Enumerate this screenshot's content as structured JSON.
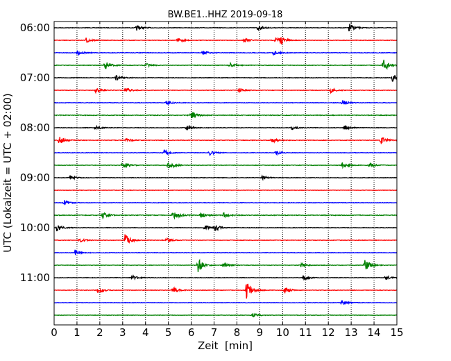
{
  "chart_data": {
    "type": "line",
    "title": "BW.BE1..HHZ 2019-09-18",
    "xlabel": "Zeit  [min]",
    "ylabel": "UTC (Lokalzeit = UTC + 02:00)",
    "xlim": [
      0,
      15
    ],
    "xticks": [
      0,
      1,
      2,
      3,
      4,
      5,
      6,
      7,
      8,
      9,
      10,
      11,
      12,
      13,
      14,
      15
    ],
    "grid": "vertical dotted",
    "trace_interval_min": 15,
    "ytick_labels": [
      "06:00",
      "07:00",
      "08:00",
      "09:00",
      "10:00",
      "11:00"
    ],
    "colors": [
      "#000000",
      "#ff0000",
      "#0000ff",
      "#008000"
    ],
    "traces": [
      {
        "start": "06:00",
        "color": "#000000",
        "noise": 0.35,
        "events": [
          [
            3.6,
            1.4
          ],
          [
            8.9,
            1.4
          ],
          [
            12.9,
            2.2
          ]
        ]
      },
      {
        "start": "06:15",
        "color": "#ff0000",
        "noise": 0.35,
        "events": [
          [
            1.4,
            1.3
          ],
          [
            5.4,
            1.2
          ],
          [
            8.3,
            1.2
          ],
          [
            9.7,
            1.6
          ],
          [
            9.9,
            1.3
          ]
        ]
      },
      {
        "start": "06:30",
        "color": "#0000ff",
        "noise": 0.4,
        "events": [
          [
            1.0,
            1.2
          ],
          [
            6.5,
            1.0
          ],
          [
            9.6,
            1.0
          ]
        ]
      },
      {
        "start": "06:45",
        "color": "#008000",
        "noise": 0.35,
        "events": [
          [
            2.2,
            2.2
          ],
          [
            4.0,
            1.0
          ],
          [
            7.7,
            1.2
          ],
          [
            14.4,
            3.2
          ]
        ]
      },
      {
        "start": "07:00",
        "color": "#000000",
        "noise": 0.35,
        "events": [
          [
            2.7,
            1.2
          ],
          [
            14.8,
            1.5
          ]
        ]
      },
      {
        "start": "07:15",
        "color": "#ff0000",
        "noise": 0.35,
        "events": [
          [
            1.8,
            1.0
          ],
          [
            3.1,
            1.4
          ],
          [
            8.1,
            1.0
          ],
          [
            12.1,
            1.1
          ]
        ]
      },
      {
        "start": "07:30",
        "color": "#0000ff",
        "noise": 0.35,
        "events": [
          [
            4.9,
            1.0
          ],
          [
            12.6,
            1.4
          ]
        ]
      },
      {
        "start": "07:45",
        "color": "#008000",
        "noise": 0.5,
        "events": [
          [
            6.0,
            2.0
          ]
        ]
      },
      {
        "start": "08:00",
        "color": "#000000",
        "noise": 0.35,
        "events": [
          [
            1.8,
            1.0
          ],
          [
            5.8,
            1.0
          ],
          [
            10.4,
            1.0
          ],
          [
            12.7,
            1.2
          ]
        ]
      },
      {
        "start": "08:15",
        "color": "#ff0000",
        "noise": 0.4,
        "events": [
          [
            0.2,
            2.0
          ],
          [
            3.1,
            1.1
          ],
          [
            9.5,
            1.3
          ],
          [
            14.3,
            2.0
          ]
        ]
      },
      {
        "start": "08:30",
        "color": "#0000ff",
        "noise": 0.35,
        "events": [
          [
            4.8,
            1.4
          ],
          [
            6.8,
            1.2
          ],
          [
            9.7,
            1.0
          ]
        ]
      },
      {
        "start": "08:45",
        "color": "#008000",
        "noise": 0.35,
        "events": [
          [
            3.0,
            2.0
          ],
          [
            5.0,
            2.5
          ],
          [
            12.6,
            1.4
          ],
          [
            13.8,
            1.4
          ]
        ]
      },
      {
        "start": "09:00",
        "color": "#000000",
        "noise": 0.35,
        "events": [
          [
            0.7,
            1.0
          ],
          [
            9.1,
            1.0
          ]
        ]
      },
      {
        "start": "09:15",
        "color": "#ff0000",
        "noise": 0.3,
        "events": []
      },
      {
        "start": "09:30",
        "color": "#0000ff",
        "noise": 0.35,
        "events": [
          [
            0.4,
            1.4
          ]
        ]
      },
      {
        "start": "09:45",
        "color": "#008000",
        "noise": 0.5,
        "events": [
          [
            2.1,
            1.4
          ],
          [
            5.2,
            2.8
          ],
          [
            6.4,
            1.4
          ],
          [
            7.4,
            1.2
          ]
        ]
      },
      {
        "start": "10:00",
        "color": "#000000",
        "noise": 0.35,
        "events": [
          [
            0.1,
            1.6
          ],
          [
            6.6,
            1.2
          ],
          [
            7.0,
            1.6
          ]
        ]
      },
      {
        "start": "10:15",
        "color": "#ff0000",
        "noise": 0.35,
        "events": [
          [
            1.1,
            1.0
          ],
          [
            3.1,
            2.8
          ],
          [
            4.9,
            1.2
          ]
        ]
      },
      {
        "start": "10:30",
        "color": "#0000ff",
        "noise": 0.35,
        "events": [
          [
            0.9,
            1.4
          ]
        ]
      },
      {
        "start": "10:45",
        "color": "#008000",
        "noise": 0.35,
        "events": [
          [
            6.3,
            3.0
          ],
          [
            7.4,
            1.2
          ],
          [
            10.8,
            1.0
          ],
          [
            13.6,
            2.5
          ]
        ]
      },
      {
        "start": "11:00",
        "color": "#000000",
        "noise": 0.35,
        "events": [
          [
            3.4,
            1.0
          ],
          [
            10.9,
            1.2
          ],
          [
            14.5,
            1.0
          ]
        ]
      },
      {
        "start": "11:15",
        "color": "#ff0000",
        "noise": 0.35,
        "events": [
          [
            1.9,
            1.4
          ],
          [
            5.2,
            1.4
          ],
          [
            8.4,
            4.2
          ],
          [
            10.1,
            1.4
          ]
        ]
      },
      {
        "start": "11:30",
        "color": "#0000ff",
        "noise": 0.3,
        "events": [
          [
            12.6,
            1.2
          ]
        ]
      },
      {
        "start": "11:45",
        "color": "#008000",
        "noise": 0.3,
        "events": [
          [
            8.7,
            1.0
          ]
        ]
      }
    ]
  }
}
